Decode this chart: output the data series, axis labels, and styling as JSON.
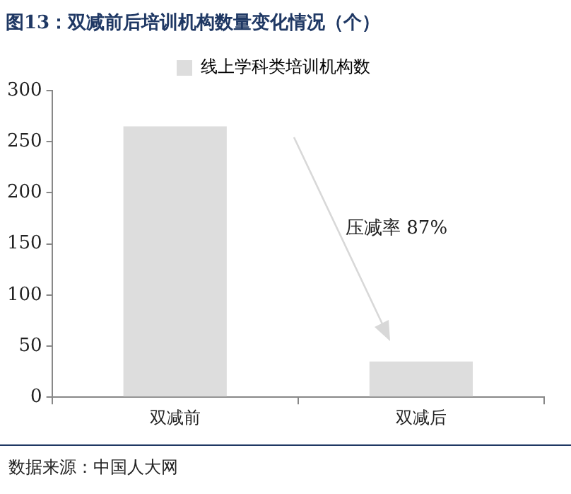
{
  "chart_data": {
    "type": "bar",
    "title": "图13：双减前后培训机构数量变化情况（个）",
    "categories": [
      "双减前",
      "双减后"
    ],
    "series": [
      {
        "name": "线上学科类培训机构数",
        "color": "#dddddd",
        "values": [
          265,
          35
        ]
      }
    ],
    "ylim": [
      0,
      300
    ],
    "yticks": [
      0,
      50,
      100,
      150,
      200,
      250,
      300
    ],
    "grid": false,
    "legend": "top",
    "annotations": [
      "压减率 87%",
      "数据来源：中国人大网"
    ]
  }
}
